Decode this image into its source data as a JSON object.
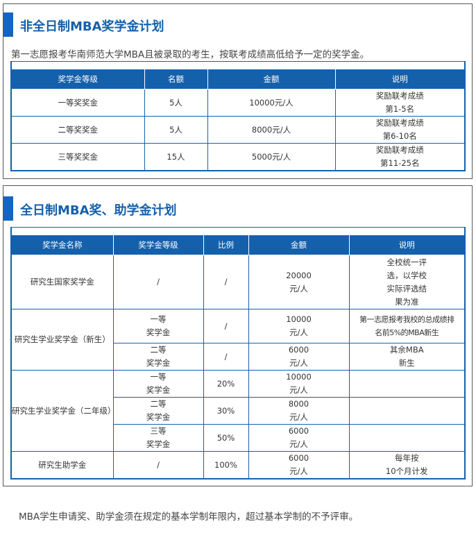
{
  "section1": {
    "title": "非全日制MBA奖学金计划",
    "intro": "第一志愿报考华南师范大学MBA且被录取的考生，按联考成绩高低给予一定的奖学金。",
    "headers": [
      "奖学金等级",
      "名额",
      "金额",
      "说明"
    ],
    "rows": [
      [
        "一等奖奖金",
        "5人",
        "10000元/人",
        "奖励联考成绩",
        "第1-5名"
      ],
      [
        "二等奖奖金",
        "5人",
        "8000元/人",
        "奖励联考成绩",
        "第6-10名"
      ],
      [
        "三等奖奖金",
        "15人",
        "5000元/人",
        "奖励联考成绩",
        "第11-25名"
      ]
    ]
  },
  "section2": {
    "title": "全日制MBA奖、助学金计划",
    "headers": [
      "奖学金名称",
      "奖学金等级",
      "比例",
      "金额",
      "说明"
    ],
    "national": {
      "name": "研究生国家奖学金",
      "level": "/",
      "ratio": "/",
      "amount": [
        "20000",
        "元/人"
      ],
      "note": [
        "全校统一评",
        "选，以学校",
        "实际评选结",
        "果为准"
      ]
    },
    "new": {
      "name": "研究生学业奖学金（新生）",
      "rows": [
        {
          "level": [
            "一等",
            "奖学金"
          ],
          "ratio": "/",
          "amount": [
            "10000",
            "元/人"
          ],
          "note": [
            "第一志愿报考我校的总成绩排",
            "名前5%的MBA新生"
          ]
        },
        {
          "level": [
            "二等",
            "奖学金"
          ],
          "ratio": "/",
          "amount": [
            "6000",
            "元/人"
          ],
          "note": [
            "其余MBA",
            "新生"
          ]
        }
      ]
    },
    "second": {
      "name": "研究生学业奖学金（二年级）",
      "rows": [
        {
          "level": [
            "一等",
            "奖学金"
          ],
          "ratio": "20%",
          "amount": [
            "10000",
            "元/人"
          ]
        },
        {
          "level": [
            "二等",
            "奖学金"
          ],
          "ratio": "30%",
          "amount": [
            "8000",
            "元/人"
          ]
        },
        {
          "level": [
            "三等",
            "奖学金"
          ],
          "ratio": "50%",
          "amount": [
            "6000",
            "元/人"
          ]
        }
      ]
    },
    "grant": {
      "name": "研究生助学金",
      "level": "/",
      "ratio": "100%",
      "amount": [
        "6000",
        "元/人"
      ],
      "note": [
        "每年按",
        "10个月计发"
      ]
    }
  },
  "footer": "MBA学生申请奖、助学金须在规定的基本学制年限内，超过基本学制的不予评审。",
  "colors": {
    "accent": "#1560ab"
  }
}
